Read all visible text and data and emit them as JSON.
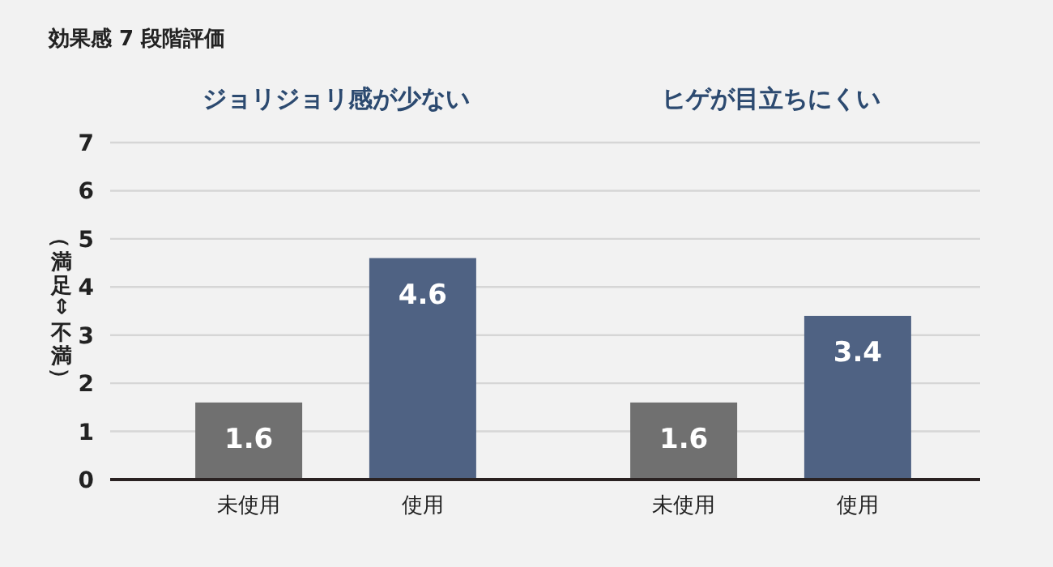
{
  "chart_data": [
    {
      "type": "bar",
      "title": "ジョリジョリ感が少ない",
      "annotations": [
        "効果感 7 段階評価"
      ],
      "ylabel": "（満足⇔不満）",
      "categories": [
        "未使用",
        "使用"
      ],
      "values": [
        1.6,
        4.6
      ],
      "colors": [
        "#707070",
        "#4f6283"
      ],
      "ylim": [
        0,
        7
      ],
      "yticks": [
        0,
        1,
        2,
        3,
        4,
        5,
        6,
        7
      ],
      "grid": "y",
      "data_labels": true
    },
    {
      "type": "bar",
      "title": "ヒゲが目立ちにくい",
      "categories": [
        "未使用",
        "使用"
      ],
      "values": [
        1.6,
        3.4
      ],
      "colors": [
        "#707070",
        "#4f6283"
      ],
      "ylim": [
        0,
        7
      ],
      "yticks": [
        0,
        1,
        2,
        3,
        4,
        5,
        6,
        7
      ],
      "grid": "y",
      "data_labels": true,
      "tick_labels": "x"
    }
  ]
}
